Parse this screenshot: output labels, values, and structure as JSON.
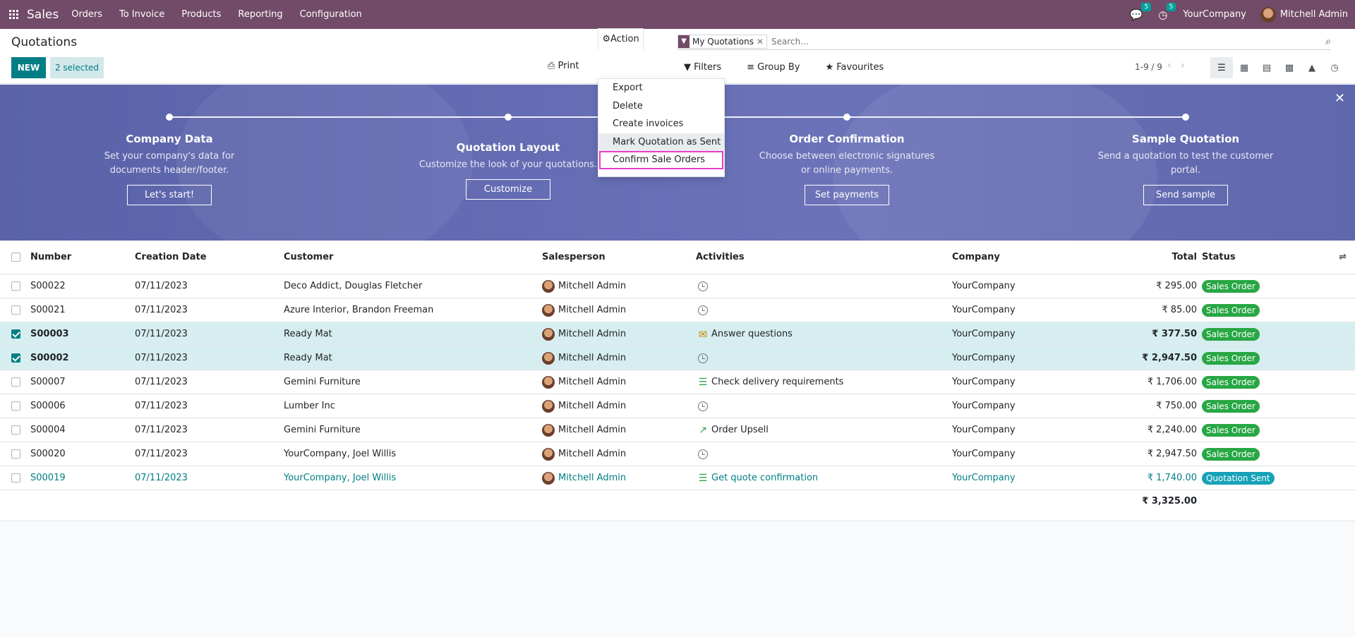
{
  "nav": {
    "app": "Sales",
    "items": [
      "Orders",
      "To Invoice",
      "Products",
      "Reporting",
      "Configuration"
    ],
    "messages_badge": "5",
    "activities_badge": "5",
    "company": "YourCompany",
    "user": "Mitchell Admin"
  },
  "control": {
    "title": "Quotations",
    "new_label": "NEW",
    "selected_label": "2 selected",
    "print_label": "Print",
    "action_label": "Action",
    "facet_label": "My Quotations",
    "search_placeholder": "Search...",
    "filters_label": "Filters",
    "groupby_label": "Group By",
    "favourites_label": "Favourites",
    "pager": "1-9 / 9"
  },
  "action_menu": [
    "Export",
    "Delete",
    "Create invoices",
    "Mark Quotation as Sent",
    "Confirm Sale Orders"
  ],
  "banner": {
    "steps": [
      {
        "title": "Company Data",
        "desc": "Set your company's data for documents header/footer.",
        "button": "Let's start!"
      },
      {
        "title": "Quotation Layout",
        "desc": "Customize the look of your quotations.",
        "button": "Customize"
      },
      {
        "title": "Order Confirmation",
        "desc": "Choose between electronic signatures or online payments.",
        "button": "Set payments"
      },
      {
        "title": "Sample Quotation",
        "desc": "Send a quotation to test the customer portal.",
        "button": "Send sample"
      }
    ]
  },
  "table": {
    "headers": [
      "Number",
      "Creation Date",
      "Customer",
      "Salesperson",
      "Activities",
      "Company",
      "Total",
      "Status"
    ],
    "rows": [
      {
        "number": "S00022",
        "date": "07/11/2023",
        "customer": "Deco Addict, Douglas Fletcher",
        "salesperson": "Mitchell Admin",
        "activity": "",
        "activity_icon": "clock",
        "company": "YourCompany",
        "total": "₹ 295.00",
        "status": "Sales Order",
        "status_color": "#28a745",
        "selected": false,
        "link": false
      },
      {
        "number": "S00021",
        "date": "07/11/2023",
        "customer": "Azure Interior, Brandon Freeman",
        "salesperson": "Mitchell Admin",
        "activity": "",
        "activity_icon": "clock",
        "company": "YourCompany",
        "total": "₹ 85.00",
        "status": "Sales Order",
        "status_color": "#28a745",
        "selected": false,
        "link": false
      },
      {
        "number": "S00003",
        "date": "07/11/2023",
        "customer": "Ready Mat",
        "salesperson": "Mitchell Admin",
        "activity": "Answer questions",
        "activity_icon": "mail",
        "company": "YourCompany",
        "total": "₹ 377.50",
        "status": "Sales Order",
        "status_color": "#28a745",
        "selected": true,
        "link": false
      },
      {
        "number": "S00002",
        "date": "07/11/2023",
        "customer": "Ready Mat",
        "salesperson": "Mitchell Admin",
        "activity": "",
        "activity_icon": "clock",
        "company": "YourCompany",
        "total": "₹ 2,947.50",
        "status": "Sales Order",
        "status_color": "#28a745",
        "selected": true,
        "link": false
      },
      {
        "number": "S00007",
        "date": "07/11/2023",
        "customer": "Gemini Furniture",
        "salesperson": "Mitchell Admin",
        "activity": "Check delivery requirements",
        "activity_icon": "todo",
        "company": "YourCompany",
        "total": "₹ 1,706.00",
        "status": "Sales Order",
        "status_color": "#28a745",
        "selected": false,
        "link": false
      },
      {
        "number": "S00006",
        "date": "07/11/2023",
        "customer": "Lumber Inc",
        "salesperson": "Mitchell Admin",
        "activity": "",
        "activity_icon": "clock",
        "company": "YourCompany",
        "total": "₹ 750.00",
        "status": "Sales Order",
        "status_color": "#28a745",
        "selected": false,
        "link": false
      },
      {
        "number": "S00004",
        "date": "07/11/2023",
        "customer": "Gemini Furniture",
        "salesperson": "Mitchell Admin",
        "activity": "Order Upsell",
        "activity_icon": "chart",
        "company": "YourCompany",
        "total": "₹ 2,240.00",
        "status": "Sales Order",
        "status_color": "#28a745",
        "selected": false,
        "link": false
      },
      {
        "number": "S00020",
        "date": "07/11/2023",
        "customer": "YourCompany, Joel Willis",
        "salesperson": "Mitchell Admin",
        "activity": "",
        "activity_icon": "clock",
        "company": "YourCompany",
        "total": "₹ 2,947.50",
        "status": "Sales Order",
        "status_color": "#28a745",
        "selected": false,
        "link": false
      },
      {
        "number": "S00019",
        "date": "07/11/2023",
        "customer": "YourCompany, Joel Willis",
        "salesperson": "Mitchell Admin",
        "activity": "Get quote confirmation",
        "activity_icon": "todo",
        "company": "YourCompany",
        "total": "₹ 1,740.00",
        "status": "Quotation Sent",
        "status_color": "#17a2b8",
        "selected": false,
        "link": true
      }
    ],
    "footer_total": "₹ 3,325.00"
  }
}
